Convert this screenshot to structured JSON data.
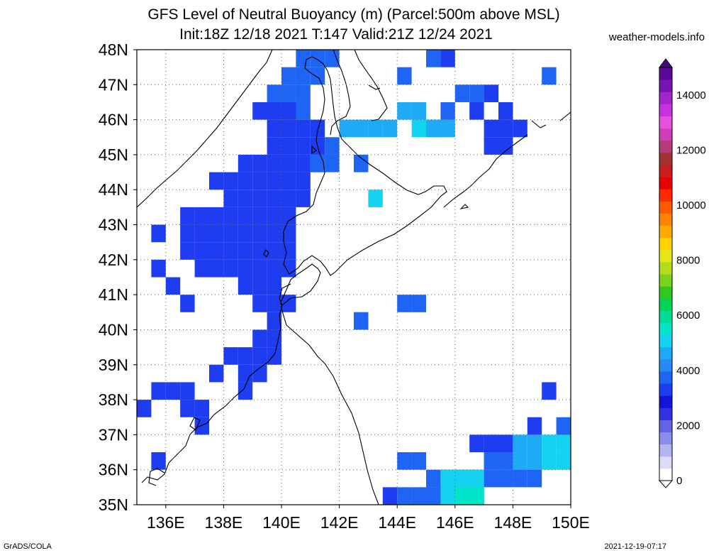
{
  "title": {
    "line1": "GFS Level of Neutral Buoyancy (m) (Parcel:500m above MSL)",
    "line2": "Init:18Z 12/18 2021 T:147 Valid:21Z 12/24 2021"
  },
  "site": "weather-models.info",
  "footer": {
    "left": "GrADS/COLA",
    "right": "2021-12-19-07:17"
  },
  "map": {
    "lon_range": [
      135,
      150
    ],
    "lat_range": [
      35,
      48
    ],
    "lat_labels": [
      "35N",
      "36N",
      "37N",
      "38N",
      "39N",
      "40N",
      "41N",
      "42N",
      "43N",
      "44N",
      "45N",
      "46N",
      "47N",
      "48N"
    ],
    "lon_labels": [
      "136E",
      "138E",
      "140E",
      "142E",
      "144E",
      "146E",
      "148E",
      "150E"
    ]
  },
  "colorbar": {
    "min": 0,
    "max": 15000,
    "labels": [
      "0",
      "2000",
      "4000",
      "6000",
      "8000",
      "10000",
      "12000",
      "14000"
    ],
    "colors": [
      "#ffffff",
      "#dcdcf8",
      "#b4b4f0",
      "#8c8ceb",
      "#6464e6",
      "#3232e1",
      "#1414d6",
      "#1e3cf0",
      "#1e64f5",
      "#2888f5",
      "#1eaaf5",
      "#14d2f0",
      "#00e6c8",
      "#00dc96",
      "#00d25a",
      "#32c81e",
      "#78d21e",
      "#b4dc1e",
      "#e6e614",
      "#ffd200",
      "#ffaa00",
      "#ff8200",
      "#ff5a00",
      "#ff2800",
      "#e60000",
      "#c81e1e",
      "#a03232",
      "#b43c78",
      "#d23cb4",
      "#e650dc",
      "#c832dc",
      "#a028c8",
      "#7814b4",
      "#5a0a96"
    ],
    "legend_colors": {
      "low_blue": "#1e3cf0",
      "mid_blue": "#1e64f5",
      "light_blue": "#1eaaf5",
      "cyan": "#14d2f0",
      "aqua": "#00e6c8"
    }
  }
}
